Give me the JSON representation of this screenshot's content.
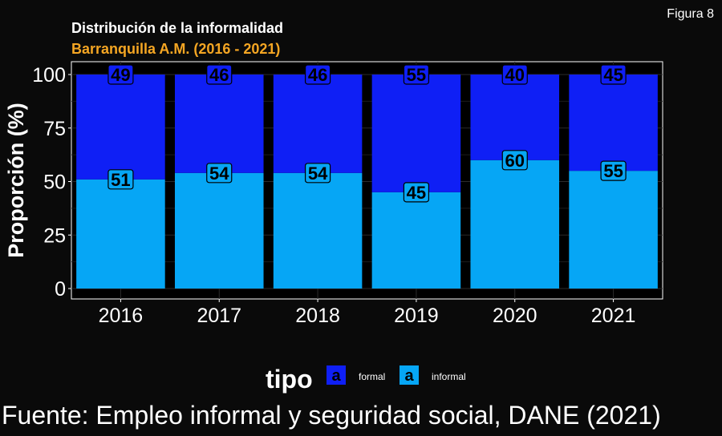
{
  "figure_label": "Figura 8",
  "legend": {
    "title": "tipo",
    "key_glyph": "a",
    "items": [
      {
        "label": "formal",
        "color": "#0f1ff5"
      },
      {
        "label": "informal",
        "color": "#06a6f5"
      }
    ]
  },
  "source": "Fuente: Empleo informal y seguridad social, DANE (2021)",
  "chart_data": {
    "type": "bar",
    "stacked": true,
    "title": "Distribución de la informalidad",
    "subtitle": "Barranquilla A.M. (2016 - 2021)",
    "xlabel": "",
    "ylabel": "Proporción (%)",
    "ylim": [
      0,
      100
    ],
    "yticks": [
      0,
      25,
      50,
      75,
      100
    ],
    "grid": true,
    "legend_position": "bottom",
    "categories": [
      "2016",
      "2017",
      "2018",
      "2019",
      "2020",
      "2021"
    ],
    "series": [
      {
        "name": "informal",
        "color": "#06a6f5",
        "values": [
          51,
          54,
          54,
          45,
          60,
          55
        ]
      },
      {
        "name": "formal",
        "color": "#0f1ff5",
        "values": [
          49,
          46,
          46,
          55,
          40,
          45
        ]
      }
    ]
  }
}
